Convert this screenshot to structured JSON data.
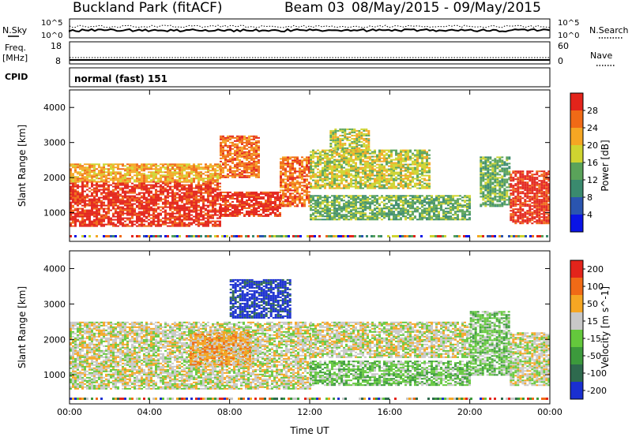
{
  "header": {
    "site": "Buckland Park (fitACF)",
    "beam": "Beam 03",
    "dates": "08/May/2015 - 09/May/2015"
  },
  "noise_panel": {
    "left_label": "N.Sky",
    "right_label": "N.Search",
    "left_ticks": [
      "10^5",
      "10^0"
    ],
    "right_ticks": [
      "10^5",
      "10^0"
    ]
  },
  "freq_panel": {
    "left_label_1": "Freq.",
    "left_label_2": "[MHz]",
    "right_label": "Nave",
    "left_ticks": [
      "18",
      "8"
    ],
    "right_ticks": [
      "60",
      "0"
    ]
  },
  "cpid_panel": {
    "label": "CPID",
    "value": "normal (fast) 151"
  },
  "chart_data": [
    {
      "type": "heatmap",
      "name": "power",
      "ylabel": "Slant Range [km]",
      "xlabel": "",
      "ylim": [
        180,
        4500
      ],
      "xlim_hours": [
        0,
        24
      ],
      "yticks": [
        "1000",
        "2000",
        "3000",
        "4000"
      ],
      "colorbar": {
        "label": "Power [dB]",
        "ticks": [
          "4",
          "8",
          "12",
          "16",
          "20",
          "24",
          "28"
        ],
        "colors": [
          "#0a14e6",
          "#2a55b0",
          "#3a8a6e",
          "#5aa35a",
          "#cfd430",
          "#f5a623",
          "#f06a16",
          "#e3241b"
        ]
      },
      "regions": [
        {
          "t0": 0.0,
          "t1": 7.5,
          "r0": 600,
          "r1": 1900,
          "level": 7
        },
        {
          "t0": 0.0,
          "t1": 7.5,
          "r0": 1900,
          "r1": 2400,
          "level": 5
        },
        {
          "t0": 7.5,
          "t1": 10.5,
          "r0": 900,
          "r1": 1600,
          "level": 7
        },
        {
          "t0": 7.5,
          "t1": 9.5,
          "r0": 2000,
          "r1": 3200,
          "level": 6
        },
        {
          "t0": 10.5,
          "t1": 12.0,
          "r0": 1200,
          "r1": 2600,
          "level": 6
        },
        {
          "t0": 12.0,
          "t1": 20.0,
          "r0": 800,
          "r1": 1500,
          "level": 3
        },
        {
          "t0": 12.0,
          "t1": 18.0,
          "r0": 1700,
          "r1": 2800,
          "level": 4
        },
        {
          "t0": 13.0,
          "t1": 15.0,
          "r0": 2800,
          "r1": 3400,
          "level": 4
        },
        {
          "t0": 20.5,
          "t1": 22.0,
          "r0": 1200,
          "r1": 2600,
          "level": 3
        },
        {
          "t0": 22.0,
          "t1": 24.0,
          "r0": 700,
          "r1": 2200,
          "level": 7
        }
      ]
    },
    {
      "type": "heatmap",
      "name": "velocity",
      "ylabel": "Slant Range [km]",
      "xlabel": "Time UT",
      "ylim": [
        180,
        4500
      ],
      "xlim_hours": [
        0,
        24
      ],
      "yticks": [
        "1000",
        "2000",
        "3000",
        "4000"
      ],
      "xticks": [
        "00:00",
        "04:00",
        "08:00",
        "12:00",
        "16:00",
        "20:00",
        "00:00"
      ],
      "colorbar": {
        "label": "Velocity [m s^-1]",
        "ticks": [
          "200",
          "100",
          "50",
          "15",
          "-15",
          "-50",
          "-100",
          "-200"
        ],
        "colors": [
          "#1a2fd0",
          "#2e6a4e",
          "#3c9a3c",
          "#64c83c",
          "#c8c8c8",
          "#f5a623",
          "#f06a16",
          "#e3241b"
        ]
      },
      "regions": [
        {
          "t0": 0.0,
          "t1": 12.0,
          "r0": 600,
          "r1": 2500,
          "level": 4
        },
        {
          "t0": 8.0,
          "t1": 11.0,
          "r0": 2600,
          "r1": 3700,
          "level": 0
        },
        {
          "t0": 6.0,
          "t1": 9.0,
          "r0": 1300,
          "r1": 2200,
          "level": 5
        },
        {
          "t0": 12.0,
          "t1": 20.0,
          "r0": 700,
          "r1": 1400,
          "level": 3
        },
        {
          "t0": 12.0,
          "t1": 20.0,
          "r0": 1500,
          "r1": 2500,
          "level": 4
        },
        {
          "t0": 20.0,
          "t1": 22.0,
          "r0": 1000,
          "r1": 2800,
          "level": 3
        },
        {
          "t0": 22.0,
          "t1": 24.0,
          "r0": 700,
          "r1": 2200,
          "level": 4
        }
      ]
    }
  ]
}
